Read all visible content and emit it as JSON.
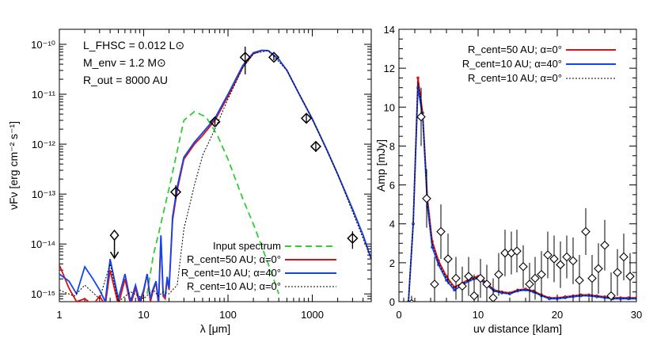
{
  "chart_data": [
    {
      "type": "line",
      "xlabel": "λ [μm]",
      "ylabel": "νFν [erg cm⁻² s⁻¹]",
      "xscale": "log",
      "yscale": "log",
      "xlim": [
        1,
        5000
      ],
      "ylim": [
        7e-16,
        2e-10
      ],
      "x_ticks": [
        {
          "v": 1,
          "label": "1"
        },
        {
          "v": 10,
          "label": "10"
        },
        {
          "v": 100,
          "label": "100"
        },
        {
          "v": 1000,
          "label": "1000"
        }
      ],
      "y_ticks": [
        {
          "v": 1e-15,
          "label": "10⁻¹⁵"
        },
        {
          "v": 1e-14,
          "label": "10⁻¹⁴"
        },
        {
          "v": 1e-13,
          "label": "10⁻¹³"
        },
        {
          "v": 1e-12,
          "label": "10⁻¹²"
        },
        {
          "v": 1e-11,
          "label": "10⁻¹¹"
        },
        {
          "v": 1e-10,
          "label": "10⁻¹⁰"
        }
      ],
      "annotations": [
        "L_FHSC = 0.012 L⊙",
        "M_env = 1.2 M⊙",
        "R_out = 8000 AU"
      ],
      "legend_position": "bottom-right",
      "series": [
        {
          "name": "Input spectrum",
          "color": "#33cc33",
          "style": "dashed",
          "x": [
            11,
            13,
            15,
            20,
            30,
            40,
            55,
            75,
            100,
            150,
            200,
            300,
            400
          ],
          "y": [
            1e-15,
            6e-15,
            1.6e-14,
            1.3e-13,
            3e-12,
            4.5e-12,
            3.5e-12,
            1.5e-12,
            5e-13,
            8e-14,
            2.5e-14,
            4e-15,
            1e-15
          ]
        },
        {
          "name": "R_cent=50 AU; α=0°",
          "color": "#dd1111",
          "style": "solid",
          "x": [
            1,
            1.3,
            1.6,
            2,
            2.5,
            3,
            3.5,
            4,
            5,
            6,
            7,
            8,
            9,
            10,
            11,
            12,
            13,
            14,
            15,
            16,
            17,
            18,
            19,
            20,
            22,
            25,
            30,
            40,
            50,
            70,
            100,
            150,
            200,
            250,
            300,
            400,
            500,
            700,
            1000,
            1500,
            2000,
            3000,
            4000,
            5000
          ],
          "y": [
            3.8e-15,
            1.3e-15,
            7e-16,
            8e-16,
            6e-16,
            9e-16,
            6e-16,
            3e-15,
            6e-16,
            2e-15,
            6e-16,
            1.3e-15,
            6e-16,
            1.1e-15,
            2.5e-15,
            7e-16,
            1.2e-15,
            1.7e-15,
            6e-16,
            1.4e-14,
            9e-16,
            8e-16,
            2e-15,
            1.2e-15,
            3e-14,
            1.2e-13,
            5e-13,
            1e-12,
            1.5e-12,
            3e-12,
            9e-12,
            3.5e-11,
            6.5e-11,
            7.5e-11,
            7.5e-11,
            5e-11,
            3e-11,
            1e-11,
            3.2e-12,
            7.5e-13,
            2.5e-13,
            5e-14,
            1.5e-14,
            5e-15
          ]
        },
        {
          "name": "R_cent=10 AU; α=40°",
          "color": "#1144ee",
          "style": "solid",
          "x": [
            1,
            1.3,
            1.6,
            2,
            2.5,
            3,
            3.5,
            4,
            5,
            6,
            7,
            8,
            9,
            10,
            11,
            12,
            13,
            14,
            15,
            16,
            17,
            18,
            19,
            20,
            22,
            25,
            30,
            40,
            50,
            70,
            100,
            150,
            200,
            250,
            300,
            400,
            500,
            700,
            1000,
            1500,
            2000,
            3000,
            4000,
            5000
          ],
          "y": [
            2.5e-15,
            1.8e-15,
            1e-15,
            3.5e-15,
            2e-15,
            1.2e-15,
            7e-16,
            5e-15,
            8e-16,
            2.5e-15,
            7e-16,
            1.5e-15,
            7e-16,
            1.2e-15,
            2.5e-15,
            8e-16,
            1.3e-15,
            1.8e-15,
            7e-16,
            1.5e-14,
            1e-15,
            9e-16,
            2.2e-15,
            1.3e-15,
            3.5e-14,
            1.4e-13,
            5.5e-13,
            1.1e-12,
            1.7e-12,
            3.3e-12,
            1e-11,
            3.8e-11,
            6.8e-11,
            7.6e-11,
            7.5e-11,
            5e-11,
            3e-11,
            1e-11,
            3.2e-12,
            7.5e-13,
            2.5e-13,
            5e-14,
            1.5e-14,
            5e-15
          ]
        },
        {
          "name": "R_cent=10 AU; α=0°",
          "color": "#000000",
          "style": "dotted",
          "x": [
            1,
            1.5,
            2,
            3,
            4,
            5,
            7,
            10,
            13,
            15,
            17,
            20,
            22,
            25,
            30,
            40,
            50,
            70,
            100,
            150,
            200,
            300,
            500,
            1000,
            2000,
            5000
          ],
          "y": [
            1.2e-15,
            9e-16,
            1.5e-15,
            8e-16,
            4e-15,
            7e-16,
            1.1e-15,
            8e-16,
            1.2e-15,
            9e-16,
            1.1e-15,
            1e-15,
            1.2e-15,
            1.5e-15,
            2e-14,
            1.5e-13,
            6e-13,
            2e-12,
            8e-12,
            3.4e-11,
            6.5e-11,
            7.5e-11,
            3e-11,
            3.2e-12,
            2.5e-13,
            5e-15
          ]
        }
      ],
      "data_points": [
        {
          "x": 24,
          "y": 1.1e-13,
          "elo": 8e-14,
          "ehi": 1.5e-13
        },
        {
          "x": 70,
          "y": 2.8e-12,
          "elo": 2.4e-12,
          "ehi": 3.2e-12
        },
        {
          "x": 160,
          "y": 5.5e-11,
          "elo": 2.5e-11,
          "ehi": 9e-11
        },
        {
          "x": 350,
          "y": 5.5e-11,
          "elo": 4.8e-11,
          "ehi": 6.2e-11
        },
        {
          "x": 850,
          "y": 3.3e-12,
          "elo": 2.6e-12,
          "ehi": 4.1e-12
        },
        {
          "x": 1100,
          "y": 9e-13,
          "elo": 7e-13,
          "ehi": 1.15e-12
        },
        {
          "x": 3000,
          "y": 1.3e-14,
          "elo": 8e-15,
          "ehi": 1.8e-14
        }
      ],
      "upper_limits": [
        {
          "x": 4.5,
          "y": 1.5e-14
        }
      ]
    },
    {
      "type": "line",
      "xlabel": "uv distance [klam]",
      "ylabel": "Amp [mJy]",
      "xlim": [
        0,
        30
      ],
      "ylim": [
        0,
        14
      ],
      "x_ticks": [
        0,
        10,
        20,
        30
      ],
      "y_ticks": [
        0,
        2,
        4,
        6,
        8,
        10,
        12,
        14
      ],
      "legend_position": "top-right",
      "series": [
        {
          "name": "R_cent=50 AU; α=0°",
          "color": "#dd1111",
          "style": "solid",
          "x": [
            1.2,
            1.8,
            2.4,
            3,
            3.6,
            4.2,
            5,
            6,
            7,
            8,
            9,
            10,
            11,
            12,
            13,
            14,
            15,
            16,
            17,
            18,
            19,
            20,
            21,
            22,
            23,
            24,
            25,
            26,
            27,
            28,
            29,
            30
          ],
          "y": [
            0,
            4,
            11.5,
            9.7,
            5.3,
            3.1,
            2.1,
            1.3,
            0.75,
            0.95,
            1.2,
            1.3,
            1.0,
            0.6,
            0.5,
            0.45,
            0.6,
            0.65,
            0.55,
            0.35,
            0.2,
            0.2,
            0.25,
            0.3,
            0.35,
            0.35,
            0.3,
            0.25,
            0.2,
            0.2,
            0.2,
            0.2
          ]
        },
        {
          "name": "R_cent=10 AU; α=40°",
          "color": "#1144ee",
          "style": "solid",
          "x": [
            1.2,
            1.8,
            2.4,
            3,
            3.6,
            4.2,
            5,
            6,
            7,
            8,
            9,
            10,
            11,
            12,
            13,
            14,
            15,
            16,
            17,
            18,
            19,
            20,
            21,
            22,
            23,
            24,
            25,
            26,
            27,
            28,
            29,
            30
          ],
          "y": [
            0,
            4,
            11,
            9.5,
            4.9,
            2.8,
            1.9,
            1.1,
            0.6,
            0.85,
            1.1,
            1.2,
            0.9,
            0.55,
            0.45,
            0.4,
            0.55,
            0.6,
            0.5,
            0.3,
            0.15,
            0.15,
            0.2,
            0.25,
            0.3,
            0.3,
            0.25,
            0.2,
            0.15,
            0.15,
            0.15,
            0.15
          ]
        },
        {
          "name": "R_cent=10 AU; α=0°",
          "color": "#000000",
          "style": "dotted",
          "x": [
            1.2,
            1.8,
            2.4,
            3,
            3.6,
            4.2,
            5,
            6,
            7,
            8,
            9,
            10,
            11,
            12,
            13,
            14,
            15,
            16,
            17,
            18,
            19,
            20,
            21,
            22,
            23,
            24,
            25,
            26,
            27,
            28,
            29,
            30
          ],
          "y": [
            0,
            4,
            11.3,
            9.6,
            5.1,
            3,
            2,
            1.2,
            0.7,
            0.9,
            1.15,
            1.25,
            0.95,
            0.58,
            0.48,
            0.42,
            0.58,
            0.62,
            0.52,
            0.32,
            0.18,
            0.18,
            0.22,
            0.28,
            0.32,
            0.32,
            0.28,
            0.22,
            0.18,
            0.18,
            0.18,
            0.18
          ]
        }
      ],
      "data_points": [
        {
          "x": 0.6,
          "y": -0.2,
          "e": 0.4
        },
        {
          "x": 1.6,
          "y": -0.1,
          "e": 0.4
        },
        {
          "x": 2.8,
          "y": 9.5,
          "e": 1.5
        },
        {
          "x": 3.5,
          "y": 5.3,
          "e": 1.5
        },
        {
          "x": 4.5,
          "y": 0.9,
          "e": 1.4
        },
        {
          "x": 5.3,
          "y": 3.6,
          "e": 1.4
        },
        {
          "x": 6.2,
          "y": 2.2,
          "e": 1.3
        },
        {
          "x": 7.2,
          "y": 1.2,
          "e": 1.1
        },
        {
          "x": 8.0,
          "y": 0.8,
          "e": 1.0
        },
        {
          "x": 8.8,
          "y": 1.3,
          "e": 1.0
        },
        {
          "x": 9.5,
          "y": 0.3,
          "e": 1.1
        },
        {
          "x": 10.3,
          "y": 1.2,
          "e": 1.0
        },
        {
          "x": 11.1,
          "y": 0.9,
          "e": 1.0
        },
        {
          "x": 11.9,
          "y": 0.2,
          "e": 1.0
        },
        {
          "x": 12.6,
          "y": 1.4,
          "e": 1.1
        },
        {
          "x": 13.4,
          "y": 2.5,
          "e": 1.2
        },
        {
          "x": 14.2,
          "y": 2.5,
          "e": 1.1
        },
        {
          "x": 14.9,
          "y": 2.6,
          "e": 1.1
        },
        {
          "x": 15.7,
          "y": 1.8,
          "e": 1.1
        },
        {
          "x": 16.5,
          "y": 0.9,
          "e": 1.1
        },
        {
          "x": 17.2,
          "y": 1.2,
          "e": 1.1
        },
        {
          "x": 18.0,
          "y": 1.4,
          "e": 1.2
        },
        {
          "x": 18.8,
          "y": 2.4,
          "e": 1.2
        },
        {
          "x": 19.6,
          "y": 2.2,
          "e": 1.2
        },
        {
          "x": 20.4,
          "y": 1.9,
          "e": 1.2
        },
        {
          "x": 21.2,
          "y": 2.3,
          "e": 1.1
        },
        {
          "x": 22.0,
          "y": 2.1,
          "e": 1.2
        },
        {
          "x": 22.8,
          "y": 1.1,
          "e": 1.3
        },
        {
          "x": 23.6,
          "y": 3.6,
          "e": 1.2
        },
        {
          "x": 24.4,
          "y": 1.2,
          "e": 1.2
        },
        {
          "x": 25.2,
          "y": 1.7,
          "e": 1.3
        },
        {
          "x": 26.0,
          "y": 2.9,
          "e": 1.3
        },
        {
          "x": 26.8,
          "y": 0.3,
          "e": 1.2
        },
        {
          "x": 27.6,
          "y": 1.5,
          "e": 1.2
        },
        {
          "x": 28.4,
          "y": 2.3,
          "e": 1.2
        },
        {
          "x": 29.2,
          "y": 1.3,
          "e": 1.2
        }
      ]
    }
  ]
}
